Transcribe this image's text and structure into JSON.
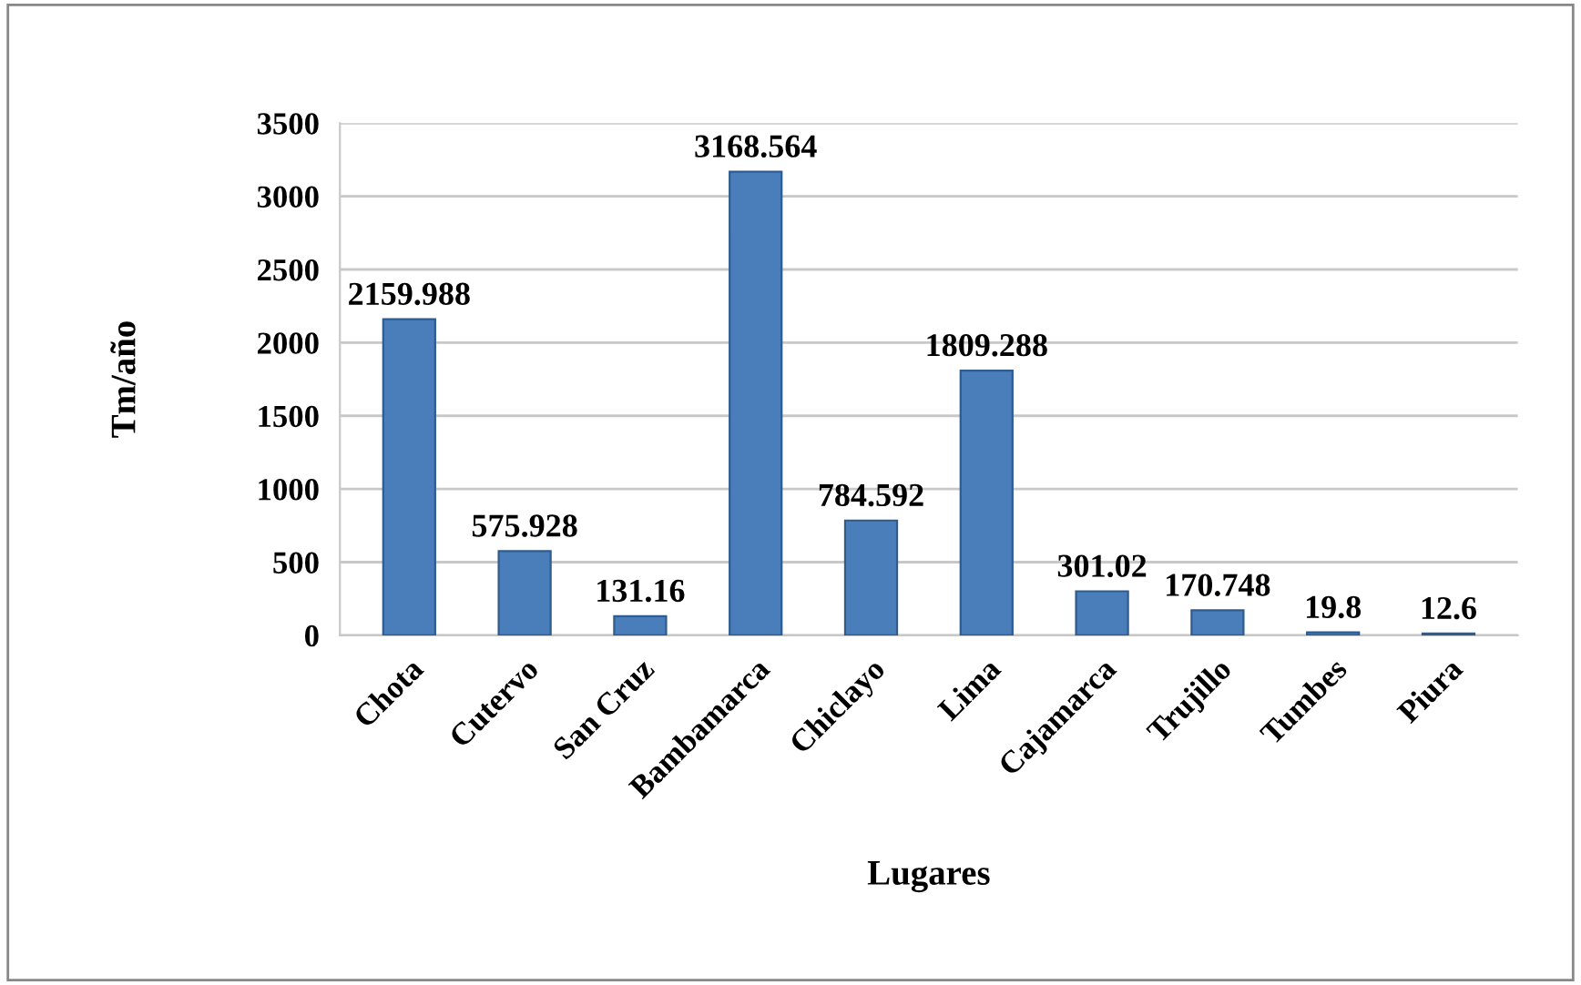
{
  "chart_data": {
    "type": "bar",
    "categories": [
      "Chota",
      "Cutervo",
      "San Cruz",
      "Bambamarca",
      "Chiclayo",
      "Lima",
      "Cajamarca",
      "Trujillo",
      "Tumbes",
      "Piura"
    ],
    "values": [
      2159.988,
      575.928,
      131.16,
      3168.564,
      784.592,
      1809.288,
      301.02,
      170.748,
      19.8,
      12.6
    ],
    "color": "#4a7ebb",
    "xlabel": "Lugares",
    "ylabel": "Tm/año",
    "ylim": [
      0,
      3500
    ],
    "yticks": [
      0,
      500,
      1000,
      1500,
      2000,
      2500,
      3000,
      3500
    ],
    "grid": "y",
    "data_labels": true
  }
}
